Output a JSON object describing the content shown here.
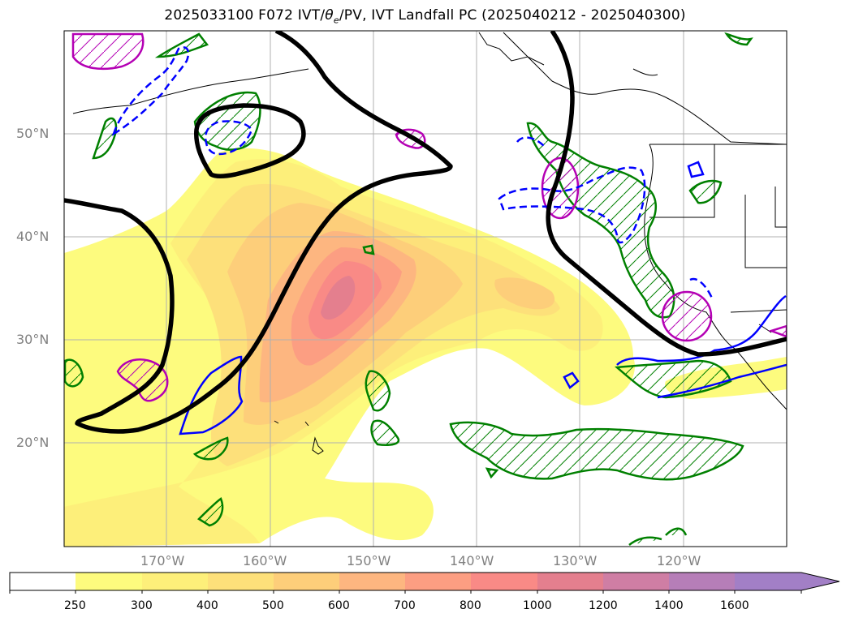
{
  "title": {
    "prefix": "2025033100 F072 IVT/",
    "theta": "θ",
    "sub": "e",
    "suffix": "/PV, IVT Landfall PC (2025040212 - 2025040300)"
  },
  "map": {
    "lat_labels": [
      "50°N",
      "40°N",
      "30°N",
      "20°N"
    ],
    "lon_labels": [
      "170°W",
      "160°W",
      "150°W",
      "140°W",
      "130°W",
      "120°W"
    ],
    "grid": true,
    "overlays": {
      "black_contour": "#000000",
      "green_hatched": "#008000",
      "magenta_hatched": "#b400b4",
      "blue_solid": "#0000ff",
      "blue_dashed": "#0000ff"
    }
  },
  "colorbar": {
    "ticks": [
      "250",
      "300",
      "400",
      "500",
      "600",
      "700",
      "800",
      "1000",
      "1200",
      "1400",
      "1600"
    ],
    "colors": [
      "#ffffff",
      "#fdfb7e",
      "#fdef7a",
      "#fde07a",
      "#fdce7a",
      "#fdb680",
      "#fc9e82",
      "#f98a86",
      "#e47f8e",
      "#cf7ea4",
      "#b67eb8",
      "#a27fc6"
    ],
    "extend": "max"
  }
}
